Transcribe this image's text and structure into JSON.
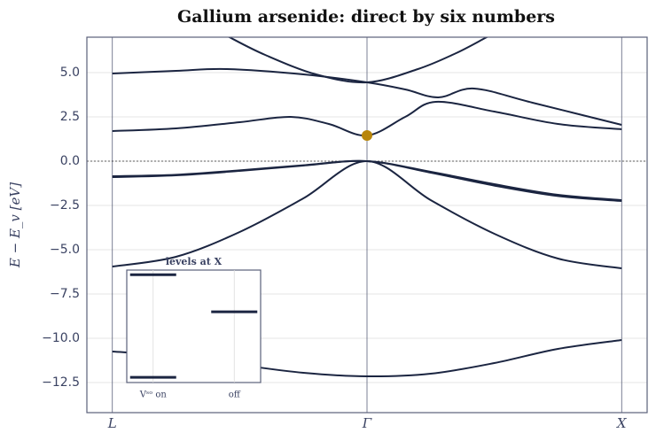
{
  "chart_data": {
    "type": "line",
    "title": "Gallium arsenide: direct by six numbers",
    "ylabel": "E − E_v  [eV]",
    "xlim": [
      -0.1,
      2.1
    ],
    "xticks": [
      {
        "value": 0,
        "label": "L"
      },
      {
        "value": 1,
        "label": "Γ"
      },
      {
        "value": 2,
        "label": "X"
      }
    ],
    "ylim": [
      -14.2,
      7.0
    ],
    "yticks": [
      {
        "value": -12.5,
        "label": "−12.5"
      },
      {
        "value": -10,
        "label": "−10.0"
      },
      {
        "value": -7.5,
        "label": "−7.5"
      },
      {
        "value": -5,
        "label": "−5.0"
      },
      {
        "value": -2.5,
        "label": "−2.5"
      },
      {
        "value": 0,
        "label": "0.0"
      },
      {
        "value": 2.5,
        "label": "2.5"
      },
      {
        "value": 5,
        "label": "5.0"
      }
    ],
    "grid": true,
    "zero_line": true,
    "color": "#1b2541",
    "series": [
      {
        "x": [
          0,
          0.25,
          0.5,
          0.75,
          1,
          1.25,
          1.5,
          1.75,
          2
        ],
        "values": [
          -10.75,
          -11.0,
          -11.5,
          -11.95,
          -12.15,
          -12.0,
          -11.4,
          -10.6,
          -10.1
        ]
      },
      {
        "x": [
          0,
          0.25,
          0.5,
          0.75,
          1,
          1.25,
          1.5,
          1.75,
          2
        ],
        "values": [
          -5.95,
          -5.4,
          -4.0,
          -2.1,
          0,
          -2.2,
          -4.1,
          -5.5,
          -6.05
        ]
      },
      {
        "x": [
          0,
          0.25,
          0.5,
          0.75,
          1,
          1.25,
          1.5,
          1.75,
          2
        ],
        "values": [
          -0.9,
          -0.8,
          -0.55,
          -0.25,
          0,
          -0.6,
          -1.3,
          -1.9,
          -2.2
        ]
      },
      {
        "x": [
          0,
          0.25,
          0.5,
          0.75,
          1,
          1.25,
          1.5,
          1.75,
          2
        ],
        "values": [
          -0.85,
          -0.77,
          -0.52,
          -0.23,
          0,
          -0.65,
          -1.38,
          -1.97,
          -2.25
        ]
      },
      {
        "x": [
          0,
          0.25,
          0.5,
          0.7,
          0.85,
          1,
          1.15,
          1.27,
          1.5,
          1.75,
          2
        ],
        "values": [
          1.7,
          1.85,
          2.2,
          2.5,
          2.1,
          1.45,
          2.5,
          3.35,
          2.8,
          2.1,
          1.8
        ]
      },
      {
        "x": [
          0,
          0.25,
          0.45,
          0.75,
          1,
          1.15,
          1.28,
          1.42,
          1.65,
          2
        ],
        "values": [
          4.95,
          5.1,
          5.2,
          4.9,
          4.45,
          4.05,
          3.6,
          4.1,
          3.3,
          2.05
        ]
      },
      {
        "x": [
          0.4,
          0.46,
          0.6,
          0.8,
          1,
          1.2,
          1.35,
          1.47,
          1.55
        ],
        "values": [
          7.5,
          7.0,
          6.0,
          4.9,
          4.45,
          5.2,
          6.1,
          7.0,
          7.6
        ]
      }
    ],
    "marker": {
      "x": 1,
      "y": 1.45,
      "color": "#b8860b"
    },
    "inset": {
      "title": "levels at X",
      "categories": [
        "Vˢᵒ on",
        "off"
      ],
      "ylim": [
        -1.2,
        1.2
      ],
      "levels": [
        [
          1.1,
          -1.09
        ],
        [
          0.31
        ]
      ]
    }
  }
}
